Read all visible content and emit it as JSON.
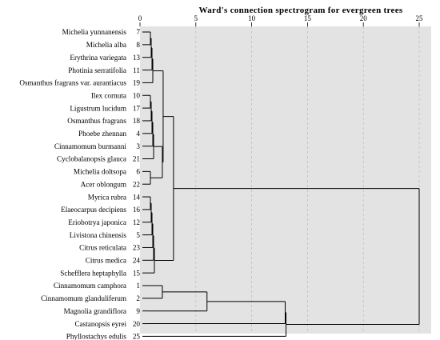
{
  "title": "Ward's connection spectrogram for evergreen trees",
  "colors": {
    "plot_background": "#e3e3e3",
    "line": "#000000",
    "grid": "#bdbdbd",
    "text": "#000000"
  },
  "chart_data": {
    "type": "dendrogram",
    "orientation": "horizontal",
    "title": "Ward's connection spectrogram for evergreen trees",
    "xlim": [
      0,
      25
    ],
    "xticks": [
      0,
      5,
      10,
      15,
      20,
      25
    ],
    "grid": "vertical-dashed",
    "leaves": [
      {
        "id": "7",
        "label": "Michelia yunnanensis"
      },
      {
        "id": "8",
        "label": "Michelia alba"
      },
      {
        "id": "13",
        "label": "Erythrina variegata"
      },
      {
        "id": "11",
        "label": "Photinia serratifolia"
      },
      {
        "id": "19",
        "label": "Osmanthus fragrans var. aurantiacus"
      },
      {
        "id": "10",
        "label": "Ilex cornuta"
      },
      {
        "id": "17",
        "label": "Ligustrum lucidum"
      },
      {
        "id": "18",
        "label": "Osmanthus fragrans"
      },
      {
        "id": "4",
        "label": "Phoebe zhennan"
      },
      {
        "id": "3",
        "label": "Cinnamomum burmanni"
      },
      {
        "id": "21",
        "label": "Cyclobalanopsis glauca"
      },
      {
        "id": "6",
        "label": "Michelia doltsopa"
      },
      {
        "id": "22",
        "label": "Acer oblongum"
      },
      {
        "id": "14",
        "label": "Myrica rubra"
      },
      {
        "id": "16",
        "label": "Elaeocarpus decipiens"
      },
      {
        "id": "12",
        "label": "Eriobotrya japonica"
      },
      {
        "id": "5",
        "label": "Livistona chinensis"
      },
      {
        "id": "23",
        "label": "Citrus reticulata"
      },
      {
        "id": "24",
        "label": "Citrus medica"
      },
      {
        "id": "15",
        "label": "Schefflera heptaphylla"
      },
      {
        "id": "1",
        "label": "Cinnamomum camphora"
      },
      {
        "id": "2",
        "label": "Cinnamomum glanduliferum"
      },
      {
        "id": "9",
        "label": "Magnolia grandiflora"
      },
      {
        "id": "20",
        "label": "Castanopsis eyrei"
      },
      {
        "id": "25",
        "label": "Phyllostachys edulis"
      }
    ],
    "merges": [
      {
        "left": 0,
        "right": 1,
        "height": 1.0
      },
      {
        "left": 25,
        "right": 2,
        "height": 1.0
      },
      {
        "left": 26,
        "right": 3,
        "height": 1.0
      },
      {
        "left": 27,
        "right": 4,
        "height": 1.0
      },
      {
        "left": 5,
        "right": 6,
        "height": 1.0
      },
      {
        "left": 29,
        "right": 7,
        "height": 1.0
      },
      {
        "left": 30,
        "right": 8,
        "height": 1.0
      },
      {
        "left": 31,
        "right": 9,
        "height": 1.0
      },
      {
        "left": 32,
        "right": 10,
        "height": 1.0
      },
      {
        "left": 11,
        "right": 12,
        "height": 1.0
      },
      {
        "left": 33,
        "right": 34,
        "height": 2.0
      },
      {
        "left": 28,
        "right": 35,
        "height": 2.0
      },
      {
        "left": 13,
        "right": 14,
        "height": 1.0
      },
      {
        "left": 37,
        "right": 15,
        "height": 1.0
      },
      {
        "left": 38,
        "right": 16,
        "height": 1.0
      },
      {
        "left": 39,
        "right": 17,
        "height": 1.0
      },
      {
        "left": 40,
        "right": 18,
        "height": 1.0
      },
      {
        "left": 41,
        "right": 19,
        "height": 1.0
      },
      {
        "left": 36,
        "right": 42,
        "height": 3.0
      },
      {
        "left": 20,
        "right": 21,
        "height": 2.0
      },
      {
        "left": 44,
        "right": 22,
        "height": 6.0
      },
      {
        "left": 45,
        "right": 23,
        "height": 13.0
      },
      {
        "left": 46,
        "right": 24,
        "height": 13.0
      },
      {
        "left": 43,
        "right": 47,
        "height": 25.0
      }
    ]
  }
}
